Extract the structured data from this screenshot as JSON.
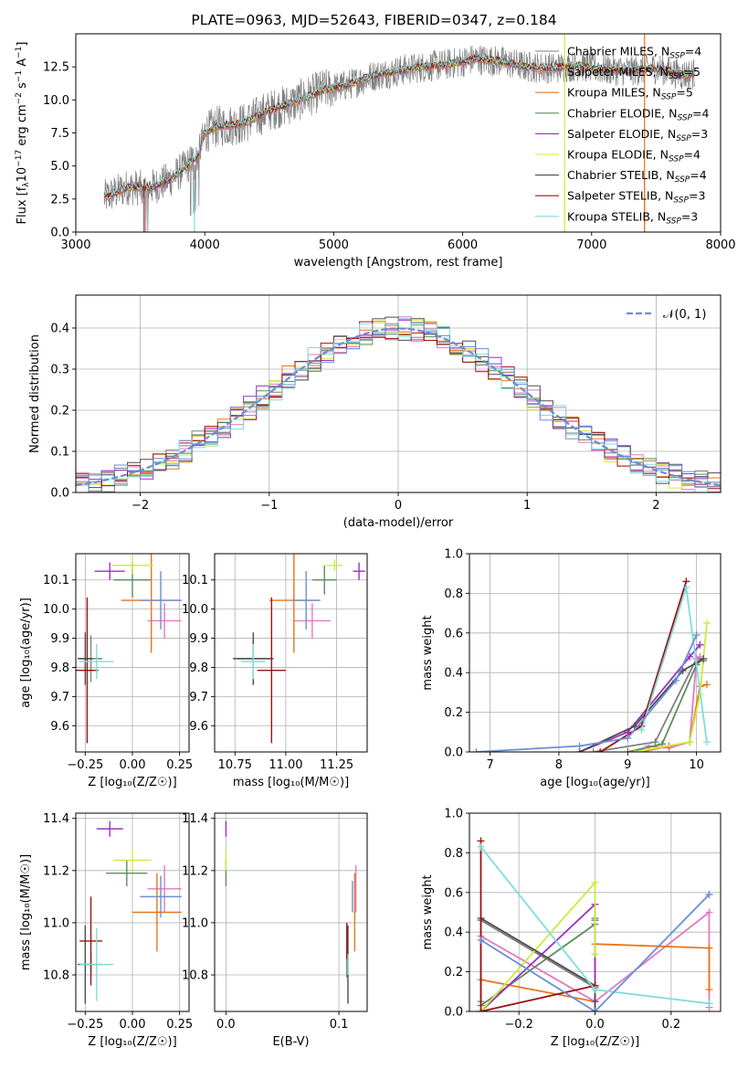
{
  "title": "PLATE=0963, MJD=52643, FIBERID=0347, z=0.184",
  "colors": {
    "axis": "#000000",
    "grid": "#b0b0b0",
    "spectrum_gray": "#808080",
    "Chabrier MILES": "#7f7f7f",
    "Salpeter MILES": "#e377c2",
    "Kroupa MILES": "#e8751a",
    "Chabrier ELODIE": "#5b8e5b",
    "Salpeter ELODIE": "#9b30c0",
    "Kroupa ELODIE": "#cdeb3c",
    "Chabrier STELIB": "#4d4d4d",
    "Salpeter STELIB": "#a01010",
    "Kroupa STELIB": "#80dcdc",
    "gaussian": "#6a8fd8",
    "blue": "#6a8fd8"
  },
  "chart_data": [
    {
      "type": "line",
      "xlabel": "wavelength [Angstrom, rest frame]",
      "ylabel_parts": [
        "Flux [f",
        "λ",
        "10",
        "−17",
        " erg cm",
        "−2",
        " s",
        "−1",
        " A",
        "−1",
        "]"
      ],
      "xlim": [
        3000,
        8000
      ],
      "ylim": [
        0,
        15
      ],
      "xticks": [
        "3000",
        "4000",
        "5000",
        "6000",
        "7000",
        "8000"
      ],
      "yticks": [
        "0.0",
        "2.5",
        "5.0",
        "7.5",
        "10.0",
        "12.5"
      ],
      "xtick_values": [
        3000,
        4000,
        5000,
        6000,
        7000,
        8000
      ],
      "ytick_values": [
        0,
        2.5,
        5,
        7.5,
        10,
        12.5
      ],
      "legend_position": "upper-right",
      "legend": [
        {
          "name": "Chabrier MILES",
          "n": "4"
        },
        {
          "name": "Salpeter MILES",
          "n": "5"
        },
        {
          "name": "Kroupa MILES",
          "n": "5"
        },
        {
          "name": "Chabrier ELODIE",
          "n": "4"
        },
        {
          "name": "Salpeter ELODIE",
          "n": "3"
        },
        {
          "name": "Kroupa ELODIE",
          "n": "4"
        },
        {
          "name": "Chabrier STELIB",
          "n": "4"
        },
        {
          "name": "Salpeter STELIB",
          "n": "3"
        },
        {
          "name": "Kroupa STELIB",
          "n": "3"
        }
      ],
      "legend_n_label": "N",
      "legend_n_sub": "SSP",
      "continuum": {
        "x": [
          3220,
          3400,
          3550,
          3650,
          3750,
          3850,
          3950,
          4000,
          4100,
          4300,
          4500,
          4700,
          4900,
          5100,
          5300,
          5500,
          5700,
          5900,
          6100,
          6300,
          6500,
          6700,
          6900,
          7100,
          7300,
          7500,
          7700,
          7800
        ],
        "y": [
          2.6,
          3.4,
          3.3,
          3.6,
          4.1,
          4.9,
          5.8,
          7.5,
          8.0,
          8.2,
          9.2,
          9.8,
          10.7,
          11.1,
          11.8,
          12.2,
          12.5,
          12.7,
          13.1,
          12.9,
          12.5,
          12.4,
          12.6,
          12.3,
          12.2,
          12.4,
          11.9,
          12.0
        ]
      }
    },
    {
      "type": "step",
      "xlabel": "(data-model)/error",
      "ylabel": "Normed distribution",
      "xlim": [
        -2.5,
        2.5
      ],
      "ylim": [
        0,
        0.48
      ],
      "xticks": [
        "−2",
        "−1",
        "0",
        "1",
        "2"
      ],
      "xtick_values": [
        -2,
        -1,
        0,
        1,
        2
      ],
      "yticks": [
        "0.0",
        "0.1",
        "0.2",
        "0.3",
        "0.4"
      ],
      "ytick_values": [
        0,
        0.1,
        0.2,
        0.3,
        0.4
      ],
      "bin_width": 0.1,
      "legend_position": "upper-right",
      "legend": [
        "𝒩(0, 1)"
      ],
      "gaussian": {
        "mu": 0,
        "sigma": 1,
        "name": "𝒩(0, 1)"
      }
    },
    {
      "type": "scatter",
      "xlabel": "Z [log₁₀(Z/Z☉)]",
      "ylabel": "age  [log₁₀(age/yr)]",
      "xlim": [
        -0.3,
        0.3
      ],
      "ylim": [
        9.51,
        10.19
      ],
      "xticks": [
        "−0.25",
        "0.00",
        "0.25"
      ],
      "xtick_values": [
        -0.25,
        0,
        0.25
      ],
      "yticks": [
        "9.6",
        "9.7",
        "9.8",
        "9.9",
        "10.0",
        "10.1"
      ],
      "ytick_values": [
        9.6,
        9.7,
        9.8,
        9.9,
        10.0,
        10.1
      ],
      "points": [
        {
          "model": "Chabrier MILES",
          "x": -0.22,
          "y": 9.83,
          "xerr": 0.06,
          "yerr": 0.08
        },
        {
          "model": "Salpeter MILES",
          "x": 0.17,
          "y": 9.96,
          "xerr": 0.09,
          "yerr": 0.06
        },
        {
          "model": "Kroupa MILES",
          "x": 0.1,
          "y": 10.03,
          "xerr": 0.16,
          "yerr": 0.18
        },
        {
          "model": "Chabrier ELODIE",
          "x": 0.0,
          "y": 10.1,
          "xerr": 0.1,
          "yerr": 0.06
        },
        {
          "model": "Salpeter ELODIE",
          "x": -0.12,
          "y": 10.13,
          "xerr": 0.08,
          "yerr": 0.03
        },
        {
          "model": "Kroupa ELODIE",
          "x": 0.0,
          "y": 10.15,
          "xerr": 0.11,
          "yerr": 0.03
        },
        {
          "model": "Chabrier STELIB",
          "x": -0.25,
          "y": 9.83,
          "xerr": 0.04,
          "yerr": 0.09
        },
        {
          "model": "Salpeter STELIB",
          "x": -0.24,
          "y": 9.79,
          "xerr": 0.06,
          "yerr": 0.25
        },
        {
          "model": "Kroupa STELIB",
          "x": -0.19,
          "y": 9.82,
          "xerr": 0.09,
          "yerr": 0.06
        },
        {
          "model": "blue",
          "x": 0.15,
          "y": 10.03,
          "xerr": 0.11,
          "yerr": 0.1
        }
      ]
    },
    {
      "type": "scatter",
      "xlabel": "mass [log₁₀(M/M☉)]",
      "ylabel": "",
      "xlim": [
        10.65,
        11.4
      ],
      "ylim": [
        9.51,
        10.19
      ],
      "xticks": [
        "10.75",
        "11.00",
        "11.25"
      ],
      "xtick_values": [
        10.75,
        11.0,
        11.25
      ],
      "yticks": [
        "9.6",
        "9.7",
        "9.8",
        "9.9",
        "10.0",
        "10.1"
      ],
      "ytick_values": [
        9.6,
        9.7,
        9.8,
        9.9,
        10.0,
        10.1
      ],
      "points": [
        {
          "model": "Chabrier MILES",
          "x": 10.84,
          "y": 9.83,
          "xerr": 0.08,
          "yerr": 0.07
        },
        {
          "model": "Salpeter MILES",
          "x": 11.13,
          "y": 9.96,
          "xerr": 0.09,
          "yerr": 0.06
        },
        {
          "model": "Kroupa MILES",
          "x": 11.04,
          "y": 10.03,
          "xerr": 0.12,
          "yerr": 0.18
        },
        {
          "model": "Chabrier ELODIE",
          "x": 11.19,
          "y": 10.1,
          "xerr": 0.06,
          "yerr": 0.05
        },
        {
          "model": "Salpeter ELODIE",
          "x": 11.36,
          "y": 10.13,
          "xerr": 0.03,
          "yerr": 0.03
        },
        {
          "model": "Kroupa ELODIE",
          "x": 11.24,
          "y": 10.15,
          "xerr": 0.04,
          "yerr": 0.02
        },
        {
          "model": "Chabrier STELIB",
          "x": 10.84,
          "y": 9.83,
          "xerr": 0.1,
          "yerr": 0.09
        },
        {
          "model": "Salpeter STELIB",
          "x": 10.93,
          "y": 9.79,
          "xerr": 0.07,
          "yerr": 0.25
        },
        {
          "model": "Kroupa STELIB",
          "x": 10.84,
          "y": 9.82,
          "xerr": 0.06,
          "yerr": 0.06
        },
        {
          "model": "blue",
          "x": 11.1,
          "y": 10.03,
          "xerr": 0.07,
          "yerr": 0.1
        }
      ]
    },
    {
      "type": "line",
      "xlabel": "age  [log₁₀(age/yr)]",
      "ylabel": "mass weight",
      "xlim": [
        6.7,
        10.35
      ],
      "ylim": [
        0,
        1.0
      ],
      "xticks": [
        "7",
        "8",
        "9",
        "10"
      ],
      "xtick_values": [
        7,
        8,
        9,
        10
      ],
      "yticks": [
        "0.0",
        "0.2",
        "0.4",
        "0.6",
        "0.8",
        "1.0"
      ],
      "ytick_values": [
        0,
        0.2,
        0.4,
        0.6,
        0.8,
        1.0
      ],
      "series": [
        {
          "model": "Chabrier MILES",
          "x": [
            8.5,
            9.4,
            10.0,
            10.1
          ],
          "y": [
            0.0,
            0.05,
            0.47,
            0.46
          ]
        },
        {
          "model": "Salpeter MILES",
          "x": [
            9.3,
            9.6,
            9.9,
            10.0,
            10.05
          ],
          "y": [
            0.03,
            0.02,
            0.05,
            0.47,
            0.48
          ]
        },
        {
          "model": "Kroupa MILES",
          "x": [
            9.2,
            9.6,
            9.9,
            10.05,
            10.15
          ],
          "y": [
            0.0,
            0.03,
            0.05,
            0.33,
            0.34
          ]
        },
        {
          "model": "Chabrier ELODIE",
          "x": [
            9.0,
            9.5,
            10.0,
            10.1
          ],
          "y": [
            0.0,
            0.04,
            0.44,
            0.47
          ]
        },
        {
          "model": "Salpeter ELODIE",
          "x": [
            8.3,
            9.0,
            9.9,
            10.05
          ],
          "y": [
            0.0,
            0.1,
            0.48,
            0.54
          ]
        },
        {
          "model": "Kroupa ELODIE",
          "x": [
            9.1,
            9.9,
            10.05,
            10.15
          ],
          "y": [
            0.0,
            0.05,
            0.29,
            0.65
          ]
        },
        {
          "model": "Chabrier STELIB",
          "x": [
            8.3,
            9.1,
            9.8,
            10.1
          ],
          "y": [
            0.0,
            0.13,
            0.41,
            0.47
          ]
        },
        {
          "model": "Salpeter STELIB",
          "x": [
            8.6,
            9.2,
            9.85
          ],
          "y": [
            0.0,
            0.13,
            0.86
          ]
        },
        {
          "model": "Kroupa STELIB",
          "x": [
            9.2,
            9.85,
            10.15
          ],
          "y": [
            0.11,
            0.83,
            0.05
          ]
        },
        {
          "model": "blue",
          "x": [
            6.8,
            8.3,
            9.0,
            9.7,
            10.0
          ],
          "y": [
            0.0,
            0.03,
            0.07,
            0.36,
            0.59
          ]
        }
      ]
    },
    {
      "type": "scatter",
      "xlabel": "Z [log₁₀(Z/Z☉)]",
      "ylabel": "mass [log₁₀(M/M☉)]",
      "xlim": [
        -0.3,
        0.3
      ],
      "ylim": [
        10.66,
        11.42
      ],
      "xticks": [
        "−0.25",
        "0.00",
        "0.25"
      ],
      "xtick_values": [
        -0.25,
        0,
        0.25
      ],
      "yticks": [
        "10.8",
        "11.0",
        "11.2",
        "11.4"
      ],
      "ytick_values": [
        10.8,
        11.0,
        11.2,
        11.4
      ],
      "points": [
        {
          "model": "Chabrier MILES",
          "x": -0.22,
          "y": 10.84,
          "xerr": 0.06,
          "yerr": 0.05
        },
        {
          "model": "Salpeter MILES",
          "x": 0.17,
          "y": 11.13,
          "xerr": 0.09,
          "yerr": 0.09
        },
        {
          "model": "Kroupa MILES",
          "x": 0.13,
          "y": 11.04,
          "xerr": 0.13,
          "yerr": 0.15
        },
        {
          "model": "Chabrier ELODIE",
          "x": -0.03,
          "y": 11.19,
          "xerr": 0.11,
          "yerr": 0.05
        },
        {
          "model": "Salpeter ELODIE",
          "x": -0.12,
          "y": 11.36,
          "xerr": 0.07,
          "yerr": 0.03
        },
        {
          "model": "Kroupa ELODIE",
          "x": 0.0,
          "y": 11.24,
          "xerr": 0.1,
          "yerr": 0.04
        },
        {
          "model": "Chabrier STELIB",
          "x": -0.25,
          "y": 10.84,
          "xerr": 0.04,
          "yerr": 0.15
        },
        {
          "model": "Salpeter STELIB",
          "x": -0.22,
          "y": 10.93,
          "xerr": 0.06,
          "yerr": 0.17
        },
        {
          "model": "Kroupa STELIB",
          "x": -0.19,
          "y": 10.84,
          "xerr": 0.09,
          "yerr": 0.14
        },
        {
          "model": "blue",
          "x": 0.15,
          "y": 11.1,
          "xerr": 0.11,
          "yerr": 0.08
        }
      ]
    },
    {
      "type": "scatter",
      "xlabel": "E(B-V)",
      "ylabel": "",
      "xlim": [
        -0.01,
        0.125
      ],
      "ylim": [
        10.66,
        11.42
      ],
      "xticks": [
        "0.0",
        "0.1"
      ],
      "xtick_values": [
        0,
        0.1
      ],
      "yticks": [
        "10.8",
        "11.0",
        "11.2",
        "11.4"
      ],
      "ytick_values": [
        10.8,
        11.0,
        11.2,
        11.4
      ],
      "points": [
        {
          "model": "Chabrier MILES",
          "x": 0.107,
          "y": 10.84,
          "xerr": 0,
          "yerr": 0.05
        },
        {
          "model": "Salpeter MILES",
          "x": 0.115,
          "y": 11.13,
          "xerr": 0,
          "yerr": 0.09
        },
        {
          "model": "Kroupa MILES",
          "x": 0.114,
          "y": 11.04,
          "xerr": 0,
          "yerr": 0.15
        },
        {
          "model": "Chabrier ELODIE",
          "x": 0.0,
          "y": 11.19,
          "xerr": 0,
          "yerr": 0.05
        },
        {
          "model": "Salpeter ELODIE",
          "x": 0.0,
          "y": 11.36,
          "xerr": 0,
          "yerr": 0.03
        },
        {
          "model": "Kroupa ELODIE",
          "x": 0.0,
          "y": 11.24,
          "xerr": 0,
          "yerr": 0.04
        },
        {
          "model": "Chabrier STELIB",
          "x": 0.108,
          "y": 10.84,
          "xerr": 0,
          "yerr": 0.15
        },
        {
          "model": "Salpeter STELIB",
          "x": 0.107,
          "y": 10.93,
          "xerr": 0,
          "yerr": 0.07
        },
        {
          "model": "Kroupa STELIB",
          "x": 0.108,
          "y": 10.84,
          "xerr": 0,
          "yerr": 0.04
        },
        {
          "model": "blue",
          "x": 0.112,
          "y": 11.1,
          "xerr": 0,
          "yerr": 0.06
        }
      ]
    },
    {
      "type": "line",
      "xlabel": "Z [log₁₀(Z/Z☉)]",
      "ylabel": "mass weight",
      "xlim": [
        -0.33,
        0.33
      ],
      "ylim": [
        0,
        1.0
      ],
      "xticks": [
        "−0.2",
        "0.0",
        "0.2"
      ],
      "xtick_values": [
        -0.2,
        0,
        0.2
      ],
      "yticks": [
        "0.0",
        "0.2",
        "0.4",
        "0.6",
        "0.8",
        "1.0"
      ],
      "ytick_values": [
        0,
        0.2,
        0.4,
        0.6,
        0.8,
        1.0
      ],
      "series": [
        {
          "model": "Chabrier MILES",
          "x": [
            -0.3,
            -0.3,
            0.0,
            0.0
          ],
          "y": [
            0.05,
            0.46,
            0.12,
            0.46
          ]
        },
        {
          "model": "Salpeter MILES",
          "x": [
            -0.3,
            0.0,
            0.3,
            0.3
          ],
          "y": [
            0.38,
            0.05,
            0.5,
            0.02
          ]
        },
        {
          "model": "Kroupa MILES",
          "x": [
            -0.3,
            0.0,
            0.0,
            0.3,
            0.3
          ],
          "y": [
            0.16,
            0.05,
            0.34,
            0.32,
            0.11
          ]
        },
        {
          "model": "Chabrier ELODIE",
          "x": [
            -0.3,
            0.0,
            0.0
          ],
          "y": [
            0.03,
            0.44,
            0.47
          ]
        },
        {
          "model": "Salpeter ELODIE",
          "x": [
            -0.3,
            0.0,
            0.0
          ],
          "y": [
            0.0,
            0.54,
            0.05
          ]
        },
        {
          "model": "Kroupa ELODIE",
          "x": [
            -0.3,
            0.0,
            0.0
          ],
          "y": [
            0.0,
            0.65,
            0.29
          ]
        },
        {
          "model": "Chabrier STELIB",
          "x": [
            -0.3,
            0.0,
            0.0
          ],
          "y": [
            0.47,
            0.13,
            0.0
          ]
        },
        {
          "model": "Salpeter STELIB",
          "x": [
            -0.3,
            -0.3,
            0.0
          ],
          "y": [
            0.86,
            0.0,
            0.13
          ]
        },
        {
          "model": "Kroupa STELIB",
          "x": [
            -0.3,
            0.0,
            0.3
          ],
          "y": [
            0.83,
            0.11,
            0.04
          ]
        },
        {
          "model": "blue",
          "x": [
            -0.3,
            0.0,
            0.3,
            0.3
          ],
          "y": [
            0.36,
            0.0,
            0.59,
            0.59
          ]
        }
      ]
    }
  ]
}
